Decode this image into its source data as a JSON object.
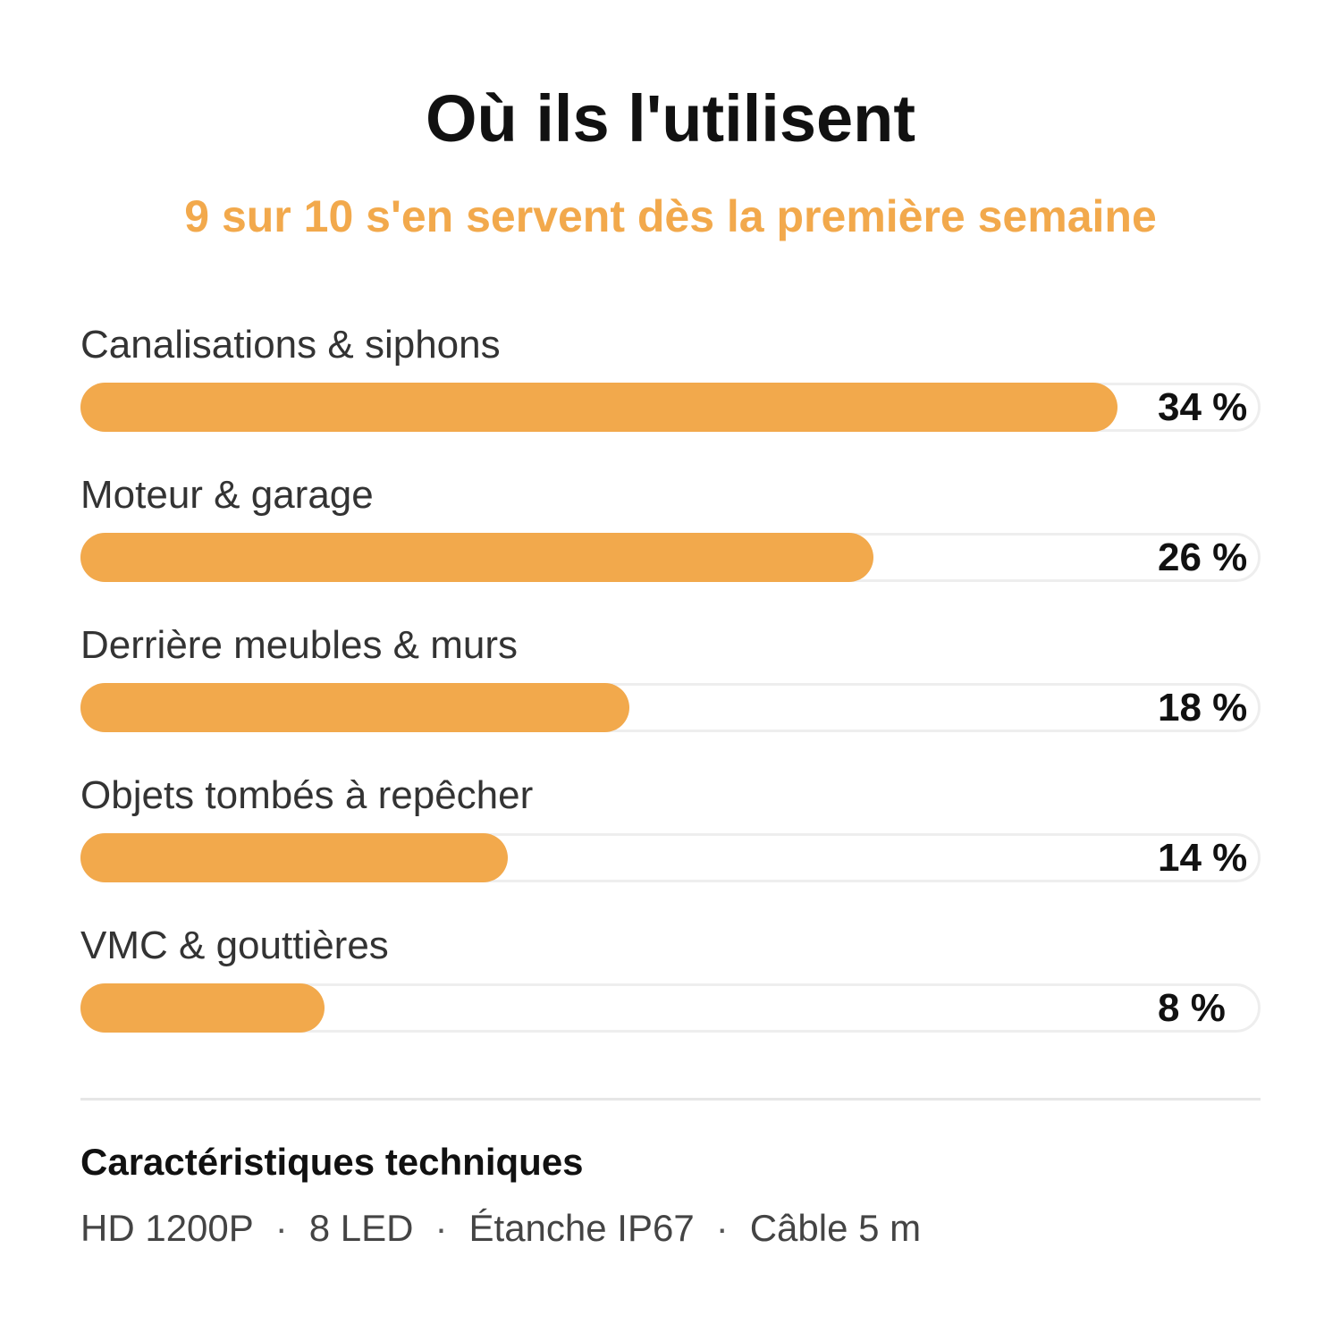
{
  "title": "Où ils l'utilisent",
  "subtitle": "9 sur 10 s'en servent dès la première semaine",
  "colors": {
    "accent": "#f2a94c",
    "track_border": "#eeeeee",
    "text_dark": "#111111",
    "text_label": "#333333"
  },
  "chart_data": {
    "type": "bar",
    "orientation": "horizontal",
    "title": "Où ils l'utilisent",
    "subtitle": "9 sur 10 s'en servent dès la première semaine",
    "categories": [
      "Canalisations & siphons",
      "Moteur & garage",
      "Derrière meubles & murs",
      "Objets tombés à repêcher",
      "VMC & gouttières"
    ],
    "values": [
      34,
      26,
      18,
      14,
      8
    ],
    "value_labels": [
      "34 %",
      "26 %",
      "18 %",
      "14 %",
      "8 %"
    ],
    "xlim": [
      0,
      38.7
    ],
    "grid": false,
    "legend": "none"
  },
  "specs": {
    "title": "Caractéristiques techniques",
    "items": [
      "HD 1200P",
      "8 LED",
      "Étanche IP67",
      "Câble 5 m"
    ],
    "separator": "·"
  }
}
